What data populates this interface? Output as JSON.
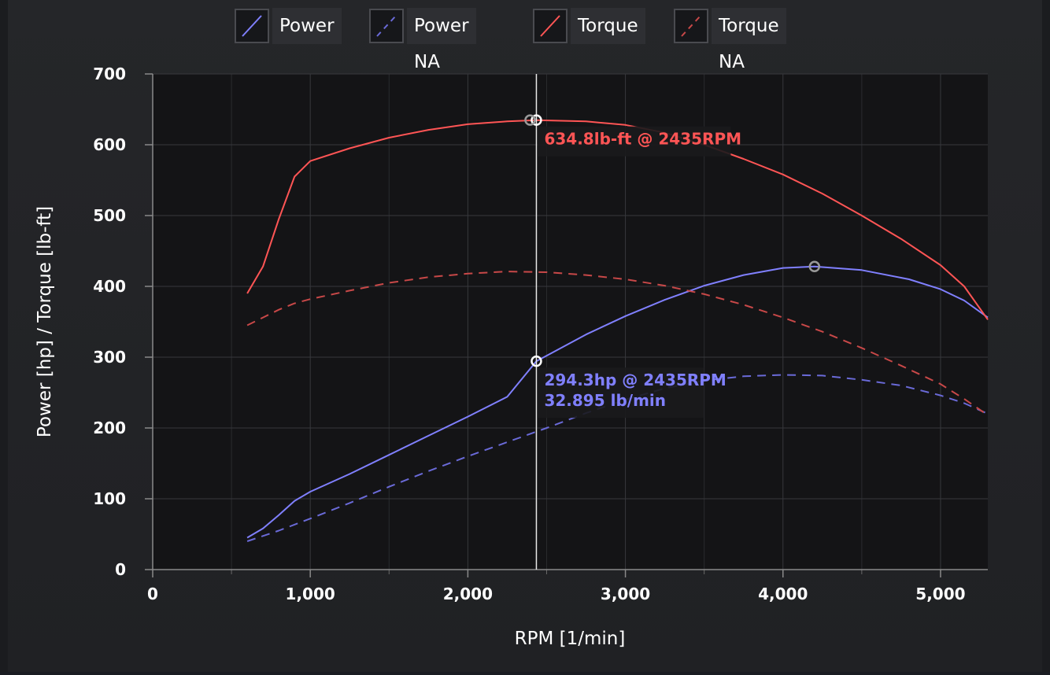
{
  "legend": [
    {
      "label": "Power",
      "color": "#8080ff",
      "dash": false
    },
    {
      "label": "Power NA",
      "color": "#6a6ad8",
      "dash": true
    },
    {
      "label": "Torque",
      "color": "#ff5555",
      "dash": false
    },
    {
      "label": "Torque NA",
      "color": "#c84848",
      "dash": true
    }
  ],
  "chart_data": {
    "type": "line",
    "xlabel": "RPM [1/min]",
    "ylabel": "Power [hp] / Torque [lb-ft]",
    "xlim": [
      0,
      5300
    ],
    "ylim": [
      0,
      700
    ],
    "x_ticks": [
      "0",
      "1,000",
      "2,000",
      "3,000",
      "4,000",
      "5,000"
    ],
    "y_ticks": [
      "0",
      "100",
      "200",
      "300",
      "400",
      "500",
      "600",
      "700"
    ],
    "x_tick_values": [
      0,
      1000,
      2000,
      3000,
      4000,
      5000
    ],
    "y_tick_values": [
      0,
      100,
      200,
      300,
      400,
      500,
      600,
      700
    ],
    "grid": true,
    "legend_position": "top",
    "cursor_x": 2435,
    "series": [
      {
        "name": "Power",
        "color": "#8080ff",
        "dashed": false,
        "points": [
          [
            600,
            45
          ],
          [
            700,
            58
          ],
          [
            800,
            77
          ],
          [
            900,
            97
          ],
          [
            1000,
            110
          ],
          [
            1250,
            135
          ],
          [
            1500,
            162
          ],
          [
            1750,
            189
          ],
          [
            2000,
            216
          ],
          [
            2250,
            244
          ],
          [
            2435,
            294.3
          ],
          [
            2750,
            332
          ],
          [
            3000,
            358
          ],
          [
            3250,
            381
          ],
          [
            3500,
            401
          ],
          [
            3750,
            416
          ],
          [
            4000,
            426
          ],
          [
            4200,
            428
          ],
          [
            4500,
            423
          ],
          [
            4800,
            410
          ],
          [
            5000,
            396
          ],
          [
            5150,
            380
          ],
          [
            5300,
            356
          ]
        ]
      },
      {
        "name": "Power NA",
        "color": "#6a6ad8",
        "dashed": true,
        "points": [
          [
            600,
            40
          ],
          [
            800,
            55
          ],
          [
            1000,
            72
          ],
          [
            1250,
            94
          ],
          [
            1500,
            117
          ],
          [
            1750,
            139
          ],
          [
            2000,
            160
          ],
          [
            2250,
            180
          ],
          [
            2500,
            200
          ],
          [
            2750,
            221
          ],
          [
            3000,
            240
          ],
          [
            3250,
            256
          ],
          [
            3500,
            267
          ],
          [
            3750,
            273
          ],
          [
            4000,
            275
          ],
          [
            4250,
            274
          ],
          [
            4500,
            268
          ],
          [
            4750,
            260
          ],
          [
            5000,
            246
          ],
          [
            5150,
            235
          ],
          [
            5300,
            220
          ]
        ]
      },
      {
        "name": "Torque",
        "color": "#ff5555",
        "dashed": false,
        "points": [
          [
            600,
            390
          ],
          [
            700,
            428
          ],
          [
            800,
            495
          ],
          [
            900,
            555
          ],
          [
            1000,
            577
          ],
          [
            1250,
            595
          ],
          [
            1500,
            610
          ],
          [
            1750,
            621
          ],
          [
            2000,
            629
          ],
          [
            2250,
            633
          ],
          [
            2435,
            634.8
          ],
          [
            2750,
            633
          ],
          [
            3000,
            628
          ],
          [
            3250,
            617
          ],
          [
            3500,
            600
          ],
          [
            3750,
            580
          ],
          [
            4000,
            558
          ],
          [
            4250,
            531
          ],
          [
            4500,
            500
          ],
          [
            4750,
            467
          ],
          [
            5000,
            430
          ],
          [
            5150,
            400
          ],
          [
            5300,
            353
          ]
        ]
      },
      {
        "name": "Torque NA",
        "color": "#c84848",
        "dashed": true,
        "points": [
          [
            600,
            345
          ],
          [
            700,
            356
          ],
          [
            800,
            367
          ],
          [
            900,
            376
          ],
          [
            1000,
            382
          ],
          [
            1250,
            394
          ],
          [
            1500,
            405
          ],
          [
            1750,
            413
          ],
          [
            2000,
            418
          ],
          [
            2250,
            421
          ],
          [
            2500,
            420
          ],
          [
            2750,
            416
          ],
          [
            3000,
            410
          ],
          [
            3250,
            401
          ],
          [
            3500,
            389
          ],
          [
            3750,
            374
          ],
          [
            4000,
            356
          ],
          [
            4250,
            336
          ],
          [
            4500,
            313
          ],
          [
            4750,
            288
          ],
          [
            5000,
            262
          ],
          [
            5150,
            241
          ],
          [
            5300,
            218
          ]
        ]
      }
    ],
    "markers": [
      {
        "x": 2435,
        "y": 634.8,
        "color": "#ffffff"
      },
      {
        "x": 2395,
        "y": 634.8,
        "color": "#999999"
      },
      {
        "x": 2435,
        "y": 294.3,
        "color": "#ffffff"
      },
      {
        "x": 4200,
        "y": 428,
        "color": "#999999"
      }
    ],
    "annotations": [
      {
        "lines": [
          "634.8lb-ft @ 2435RPM"
        ],
        "color": "#ff5555",
        "x": 2435,
        "y": 634.8
      },
      {
        "lines": [
          "294.3hp @ 2435RPM",
          "32.895 lb/min"
        ],
        "color": "#8080ff",
        "x": 2435,
        "y": 294.3
      }
    ]
  }
}
